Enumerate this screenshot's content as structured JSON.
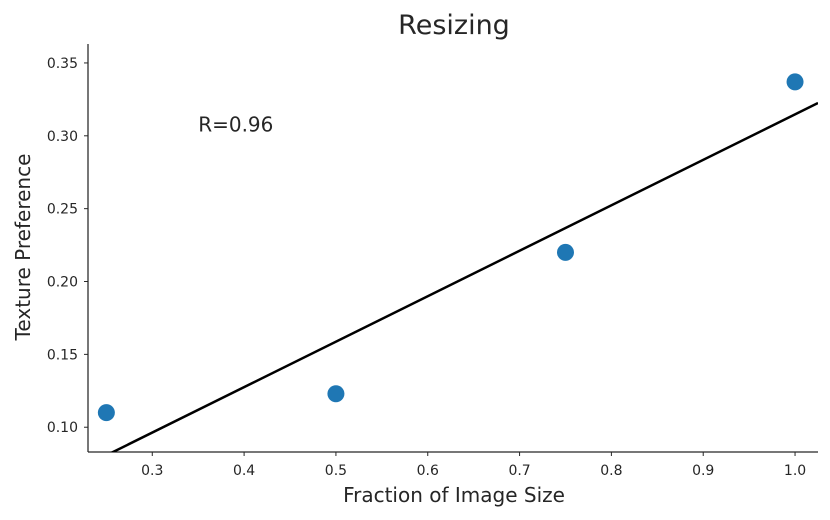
{
  "chart_data": {
    "type": "scatter",
    "title": "Resizing",
    "xlabel": "Fraction of Image Size",
    "ylabel": "Texture Preference",
    "xlim": [
      0.23,
      1.025
    ],
    "ylim": [
      0.083,
      0.363
    ],
    "xticks": [
      "0.3",
      "0.4",
      "0.5",
      "0.6",
      "0.7",
      "0.8",
      "0.9",
      "1.0"
    ],
    "yticks": [
      "0.10",
      "0.15",
      "0.20",
      "0.25",
      "0.30",
      "0.35"
    ],
    "grid": false,
    "series": [
      {
        "x": [
          0.25,
          0.5,
          0.75,
          1.0
        ],
        "y": [
          0.11,
          0.123,
          0.22,
          0.337
        ],
        "color": "#1f77b4"
      }
    ],
    "fit_line": {
      "x": [
        0.23,
        1.025
      ],
      "y": [
        0.0745,
        0.3225
      ],
      "color": "#000000"
    },
    "annotation": {
      "text": "R=0.96",
      "x": 0.35,
      "y": 0.303
    }
  }
}
